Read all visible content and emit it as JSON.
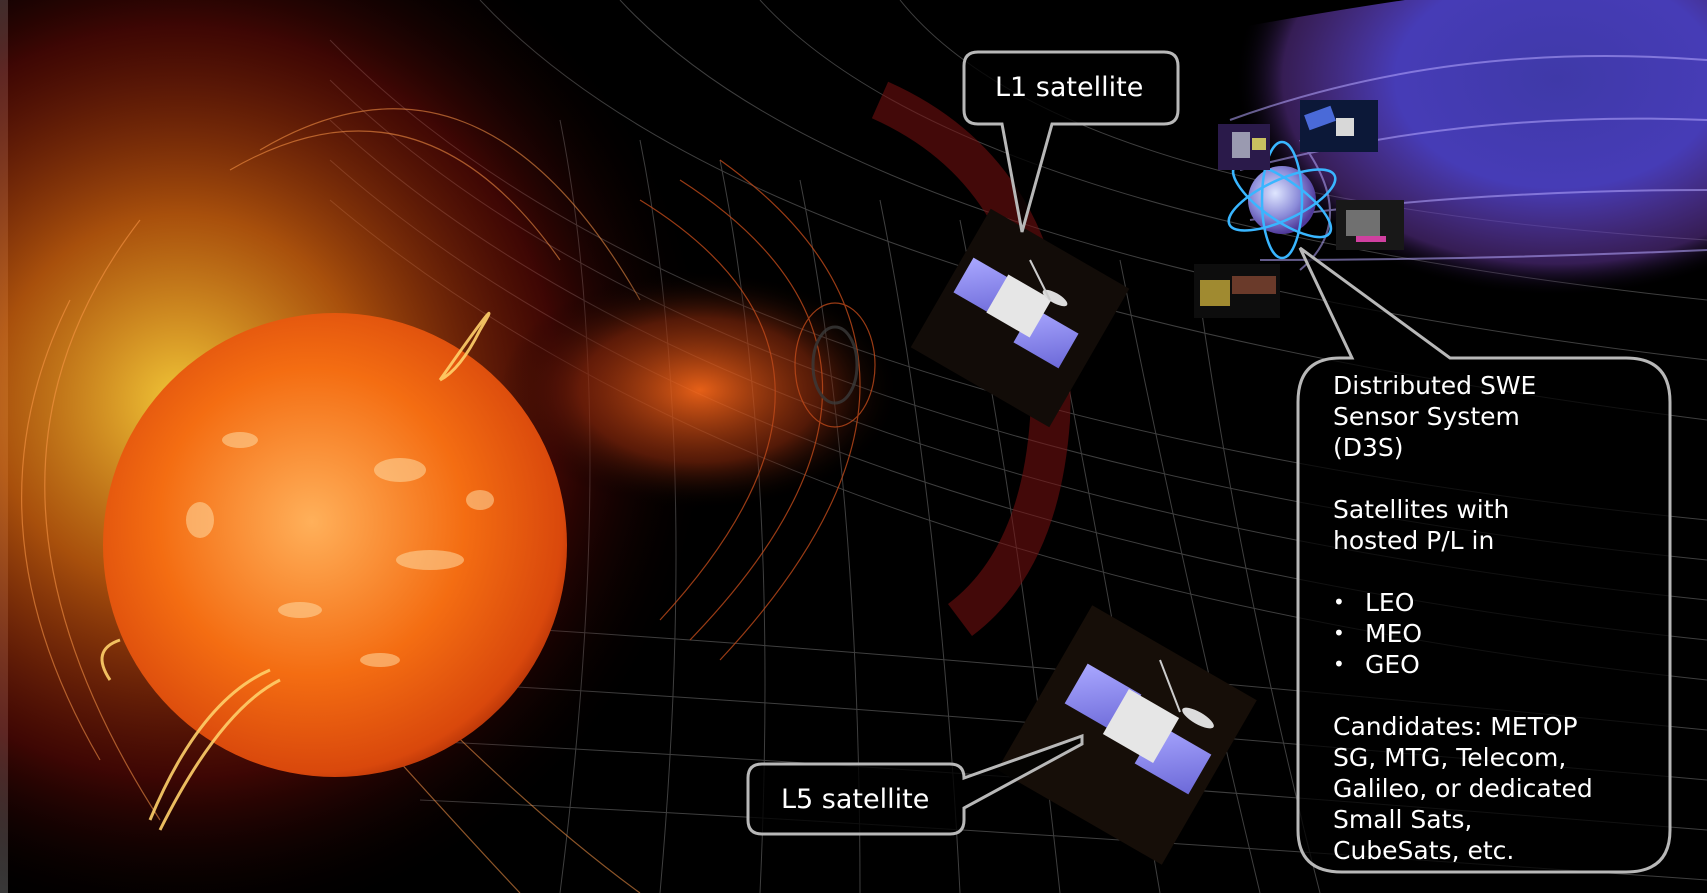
{
  "labels": {
    "l1": "L1 satellite",
    "l5": "L5 satellite"
  },
  "d3s": {
    "title_lines": [
      "Distributed SWE",
      "Sensor System",
      "(D3S)"
    ],
    "intro_lines": [
      "Satellites with",
      "hosted P/L in"
    ],
    "orbits": [
      "LEO",
      "MEO",
      "GEO"
    ],
    "candidates_lines": [
      "Candidates: METOP",
      "SG, MTG, Telecom,",
      "Galileo, or dedicated",
      "Small Sats,",
      "CubeSats, etc."
    ]
  },
  "colors": {
    "sun_core": "#ff7a1a",
    "sun_glow": "#ffcc33",
    "magnetosphere": "#5b4fd6",
    "callout_border": "#b8b8b8",
    "solar_panel": "#8f8df0"
  },
  "icons": {
    "sun": "sun-icon",
    "earth": "earth-icon",
    "satellite": "satellite-icon"
  }
}
